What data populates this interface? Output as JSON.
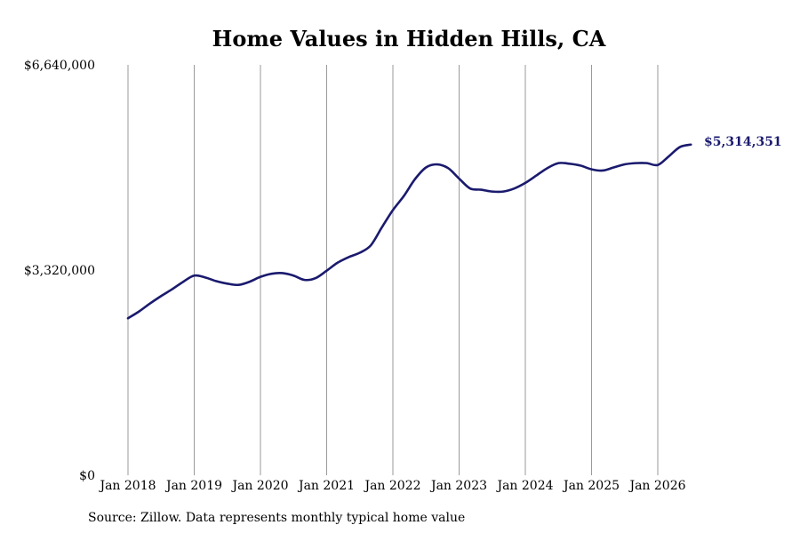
{
  "chart_data": {
    "type": "line",
    "title": "Home Values in Hidden Hills, CA",
    "xlabel": "",
    "ylabel": "",
    "y_tick_labels": [
      "$0",
      "$3,320,000",
      "$6,640,000"
    ],
    "y_tick_values": [
      0,
      3320000,
      6640000
    ],
    "ylim": [
      0,
      6640000
    ],
    "x_tick_labels": [
      "Jan 2018",
      "Jan 2019",
      "Jan 2020",
      "Jan 2021",
      "Jan 2022",
      "Jan 2023",
      "Jan 2024",
      "Jan 2025",
      "Jan 2026"
    ],
    "grid": "vertical",
    "line_color": "#1a1a6e",
    "end_value_label": "$5,314,351",
    "series": [
      {
        "x": [
          "2018-01",
          "2018-03",
          "2018-05",
          "2018-07",
          "2018-09",
          "2018-11",
          "2019-01",
          "2019-03",
          "2019-05",
          "2019-07",
          "2019-09",
          "2019-11",
          "2020-01",
          "2020-03",
          "2020-05",
          "2020-07",
          "2020-09",
          "2020-11",
          "2021-01",
          "2021-03",
          "2021-05",
          "2021-07",
          "2021-09",
          "2021-11",
          "2022-01",
          "2022-03",
          "2022-05",
          "2022-07",
          "2022-09",
          "2022-11",
          "2023-01",
          "2023-03",
          "2023-05",
          "2023-07",
          "2023-09",
          "2023-11",
          "2024-01",
          "2024-03",
          "2024-05",
          "2024-07",
          "2024-09",
          "2024-11",
          "2025-01",
          "2025-03",
          "2025-05",
          "2025-07",
          "2025-09",
          "2025-11",
          "2026-01",
          "2026-03",
          "2026-05",
          "2026-07"
        ],
        "values": [
          2540000,
          2650000,
          2780000,
          2900000,
          3010000,
          3130000,
          3230000,
          3200000,
          3140000,
          3100000,
          3080000,
          3130000,
          3210000,
          3260000,
          3270000,
          3230000,
          3160000,
          3190000,
          3310000,
          3440000,
          3530000,
          3600000,
          3720000,
          4010000,
          4290000,
          4520000,
          4790000,
          4980000,
          5030000,
          4970000,
          4800000,
          4640000,
          4620000,
          4590000,
          4590000,
          4640000,
          4730000,
          4850000,
          4970000,
          5050000,
          5040000,
          5010000,
          4950000,
          4930000,
          4980000,
          5030000,
          5050000,
          5050000,
          5020000,
          5160000,
          5310000,
          5350000
        ]
      }
    ]
  },
  "source_note": "Source: Zillow. Data represents monthly typical home value"
}
